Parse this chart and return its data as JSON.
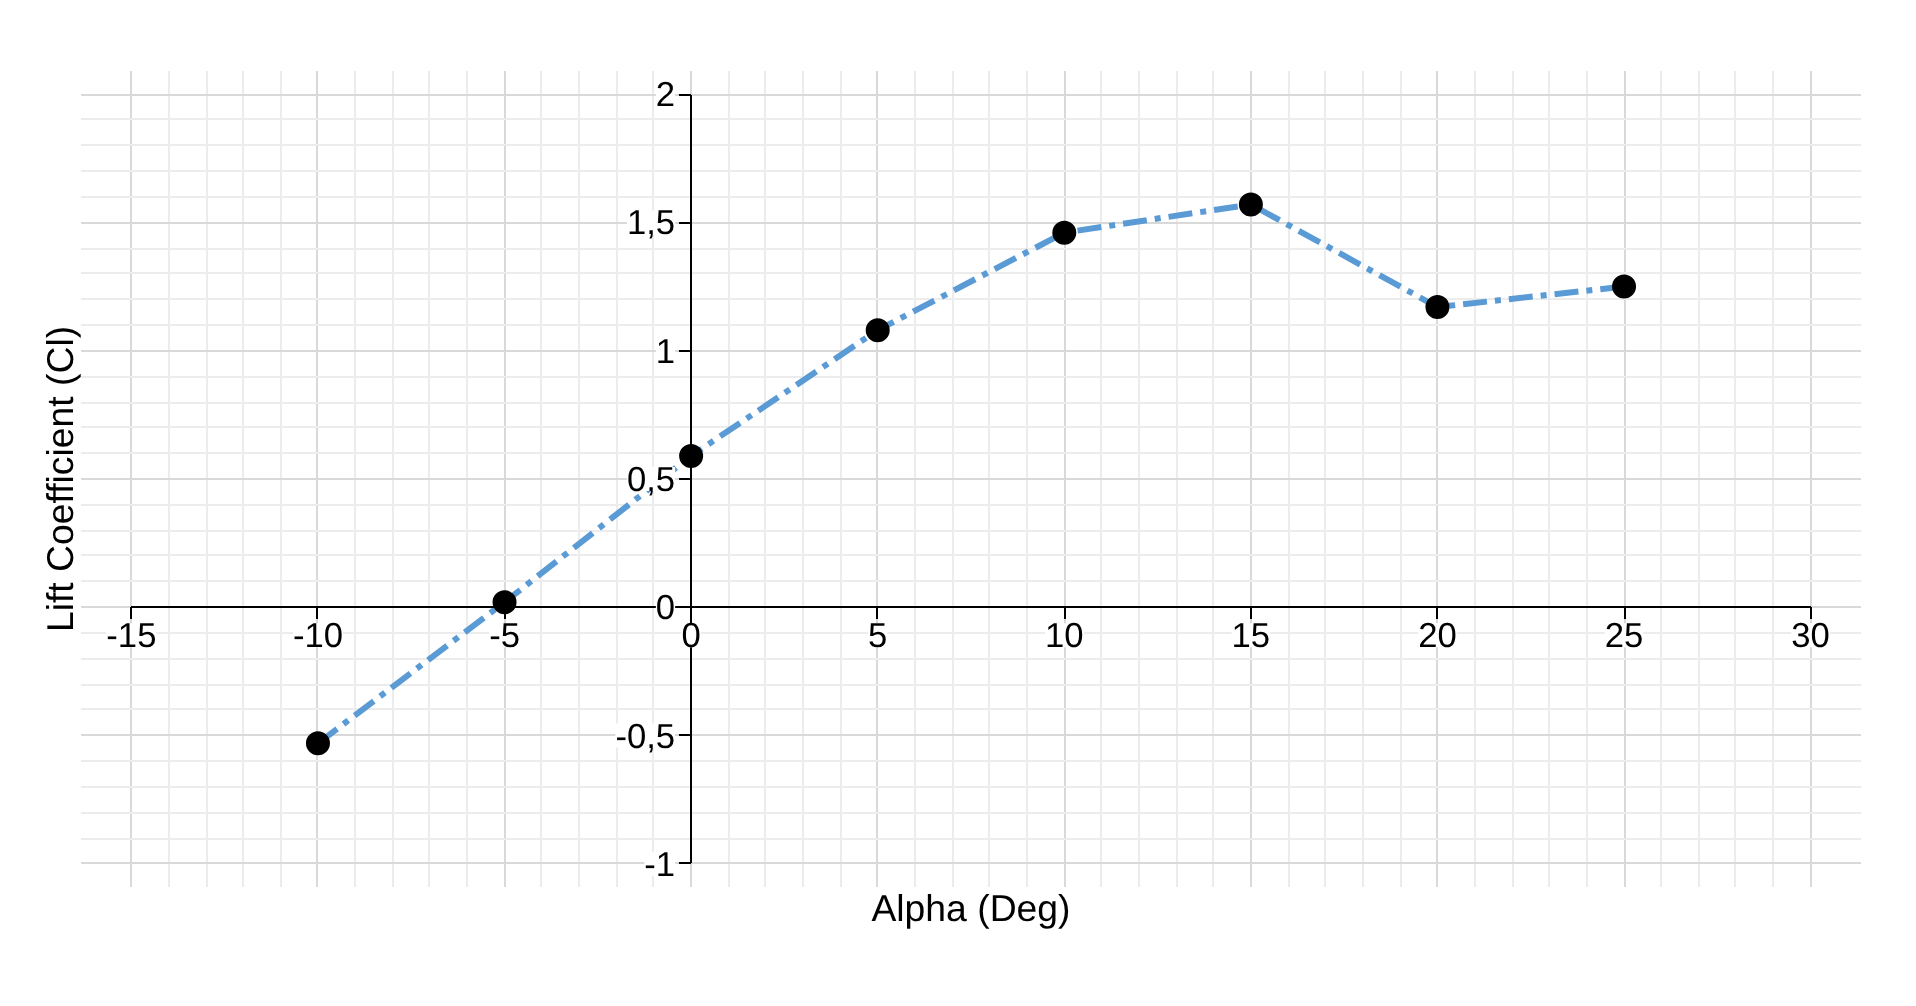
{
  "chart_data": {
    "type": "line",
    "xlabel": "Alpha (Deg)",
    "ylabel": "Lift Coefficient (Cl)",
    "x": [
      -10,
      -5,
      0,
      5,
      10,
      15,
      20,
      25
    ],
    "series": [
      {
        "color": "#5b9bd5",
        "values": [
          -0.53,
          0.02,
          0.59,
          1.08,
          1.46,
          1.57,
          1.17,
          1.25
        ]
      }
    ],
    "marker": "circle",
    "line_style": "dashdot",
    "grid": true,
    "xlim": [
      -15,
      30
    ],
    "xticks": [
      -15,
      -10,
      -5,
      0,
      5,
      10,
      15,
      20,
      25,
      30
    ],
    "ylim": [
      -1,
      2
    ],
    "yticks": [
      {
        "value": -1,
        "label": "-1"
      },
      {
        "value": -0.5,
        "label": "-0,5"
      },
      {
        "value": 0,
        "label": "0"
      },
      {
        "value": 0.5,
        "label": "0,5"
      },
      {
        "value": 1,
        "label": "1"
      },
      {
        "value": 1.5,
        "label": "1,5"
      },
      {
        "value": 2,
        "label": "2"
      }
    ]
  }
}
